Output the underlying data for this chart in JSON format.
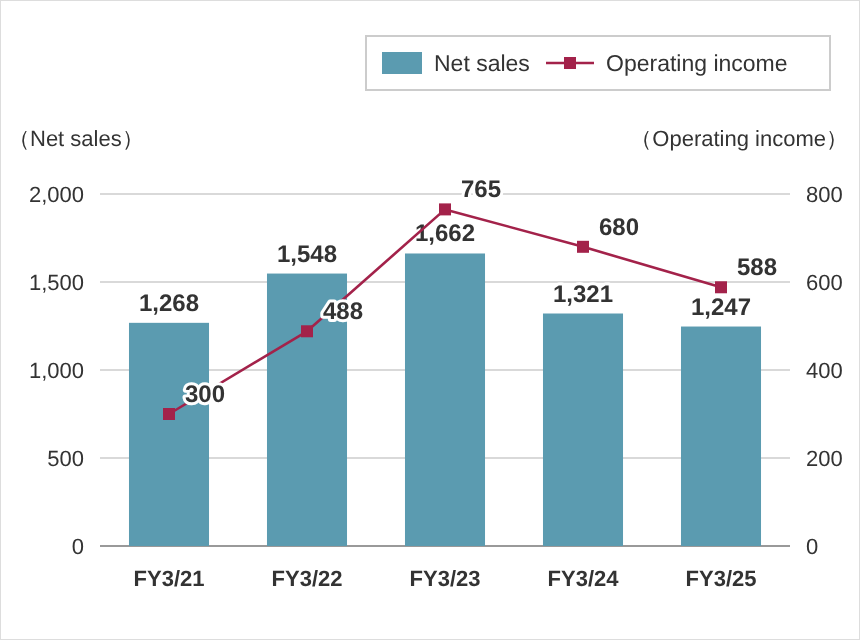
{
  "chart_data": {
    "type": "bar",
    "categories": [
      "FY3/21",
      "FY3/22",
      "FY3/23",
      "FY3/24",
      "FY3/25"
    ],
    "ylabel": "（Net sales）",
    "y2label": "（Operating income）",
    "ylim": [
      0,
      2000
    ],
    "yticks": [
      0,
      {
        "value": 500,
        "label": "500"
      },
      {
        "value": 1000,
        "label": "1,000"
      },
      {
        "value": 1500,
        "label": "1,500"
      },
      {
        "value": 2000,
        "label": "2,000"
      }
    ],
    "y2lim": [
      0,
      800
    ],
    "y2ticks": [
      0,
      200,
      400,
      600,
      800
    ],
    "grid": "y",
    "legend": "top right",
    "marker": "square",
    "series": [
      {
        "name": "Net sales",
        "color": "#5b9bb0",
        "values": [
          1268,
          1548,
          1662,
          1321,
          1247
        ],
        "value_labels": [
          "1,268",
          "1,548",
          "1,662",
          "1,321",
          "1,247"
        ]
      },
      {
        "name": "Operating income",
        "type": "line",
        "axis": "y2",
        "color": "#a3224a",
        "values": [
          300,
          488,
          765,
          680,
          588
        ],
        "value_labels": [
          "300",
          "488",
          "765",
          "680",
          "588"
        ]
      }
    ]
  }
}
